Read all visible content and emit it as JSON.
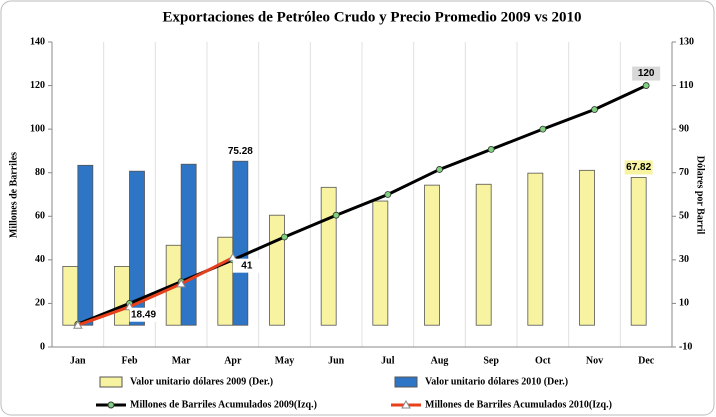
{
  "chart_data": {
    "type": "bar",
    "title": "Exportaciones de Petróleo Crudo y Precio Promedio 2009 vs 2010",
    "ylabel": "Millones de Barriles",
    "y2label": "Dólares por Barril",
    "categories": [
      "Jan",
      "Feb",
      "Mar",
      "Apr",
      "May",
      "Jun",
      "Jul",
      "Aug",
      "Sep",
      "Oct",
      "Nov",
      "Dec"
    ],
    "ylim": [
      0,
      140
    ],
    "yticks": [
      0,
      20,
      40,
      60,
      80,
      100,
      120,
      140
    ],
    "y2lim": [
      -10,
      130
    ],
    "y2ticks": [
      -10,
      10,
      30,
      50,
      70,
      90,
      110,
      130
    ],
    "series": [
      {
        "name": "Valor unitario dólares 2009 (Der.)",
        "type": "bar",
        "axis": "y2",
        "color": "#f7f3a0",
        "values": [
          27,
          27,
          36.7,
          40.4,
          50.5,
          63.3,
          57,
          64.3,
          64.7,
          69.8,
          71.1,
          67.82
        ],
        "value_labels": [
          null,
          null,
          null,
          null,
          null,
          null,
          null,
          null,
          null,
          null,
          null,
          "67.82"
        ]
      },
      {
        "name": "Valor unitario dólares 2010 (Der.)",
        "type": "bar",
        "axis": "y2",
        "color": "#2e75c6",
        "values": [
          73.4,
          70.7,
          73.9,
          75.28,
          null,
          null,
          null,
          null,
          null,
          null,
          null,
          null
        ],
        "value_labels": [
          null,
          null,
          null,
          "75.28",
          null,
          null,
          null,
          null,
          null,
          null,
          null,
          null
        ]
      },
      {
        "name": "Millones de Barriles Acumulados 2009(Izq.)",
        "type": "line",
        "color": "#000000",
        "values": [
          10.5,
          20,
          30,
          40,
          50.5,
          60.5,
          70,
          81.5,
          90.7,
          100,
          109,
          120
        ],
        "value_labels": [
          null,
          null,
          null,
          null,
          null,
          null,
          null,
          null,
          null,
          null,
          null,
          "120"
        ]
      },
      {
        "name": "Millones de Barriles Acumulados 2010(Izq.)",
        "type": "line",
        "color": "#e8401c",
        "values": [
          10,
          18.49,
          29,
          41,
          null,
          null,
          null,
          null,
          null,
          null,
          null,
          null
        ],
        "value_labels": [
          null,
          "18.49",
          null,
          "41",
          null,
          null,
          null,
          null,
          null,
          null,
          null,
          null
        ]
      }
    ]
  }
}
